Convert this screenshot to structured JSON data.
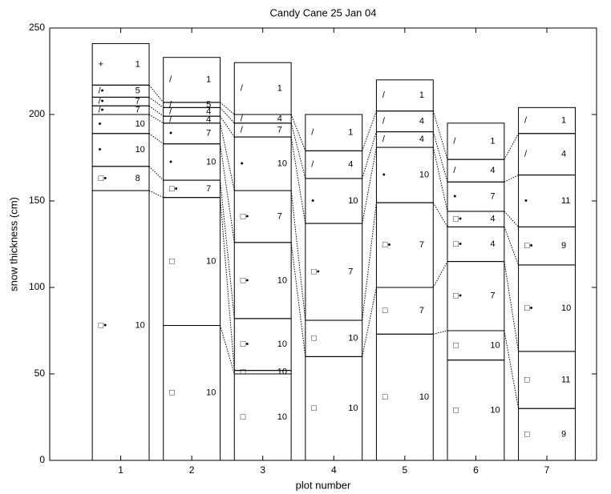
{
  "chart_data": {
    "type": "stratigraphy",
    "title": "Candy Cane 25 Jan 04",
    "xlabel": "plot number",
    "ylabel": "snow thickness (cm)",
    "xlim": [
      0,
      7.7
    ],
    "xticks": [
      1,
      2,
      3,
      4,
      5,
      6,
      7
    ],
    "ylim": [
      0,
      250
    ],
    "yticks": [
      0,
      50,
      100,
      150,
      200,
      250
    ],
    "bar_width": 0.8,
    "color": "#000000",
    "plots": [
      {
        "tops": [
          156,
          170,
          189,
          200,
          205,
          210,
          217,
          241
        ],
        "symbols": [
          "□•",
          "□•",
          "•",
          "•",
          "/•",
          "/•",
          "/•",
          "+"
        ],
        "hardness": [
          10,
          8,
          10,
          10,
          7,
          7,
          5,
          1
        ]
      },
      {
        "tops": [
          78,
          152,
          162,
          183,
          195,
          199,
          204,
          207,
          233
        ],
        "symbols": [
          "□",
          "□",
          "□•",
          "•",
          "•",
          "/",
          "/",
          "/",
          "/"
        ],
        "hardness": [
          10,
          10,
          7,
          10,
          7,
          4,
          4,
          5,
          1
        ]
      },
      {
        "tops": [
          50,
          52,
          82,
          126,
          156,
          187,
          195,
          200,
          230
        ],
        "symbols": [
          "□",
          "□",
          "□•",
          "□•",
          "□•",
          "•",
          "/",
          "/",
          "/"
        ],
        "hardness": [
          10,
          10,
          10,
          10,
          7,
          10,
          7,
          4,
          1
        ]
      },
      {
        "tops": [
          60,
          81,
          137,
          163,
          179,
          200
        ],
        "symbols": [
          "□",
          "□",
          "□•",
          "•",
          "/",
          "/"
        ],
        "hardness": [
          10,
          10,
          7,
          10,
          4,
          1
        ]
      },
      {
        "tops": [
          73,
          100,
          149,
          181,
          190,
          202,
          220
        ],
        "symbols": [
          "□",
          "□",
          "□•",
          "•",
          "/",
          "/",
          "/"
        ],
        "hardness": [
          10,
          7,
          7,
          10,
          4,
          4,
          1
        ]
      },
      {
        "tops": [
          58,
          75,
          115,
          135,
          144,
          161,
          174,
          195
        ],
        "symbols": [
          "□",
          "□",
          "□•",
          "□•",
          "□•",
          "•",
          "/",
          "/"
        ],
        "hardness": [
          10,
          10,
          7,
          4,
          4,
          7,
          4,
          1
        ]
      },
      {
        "tops": [
          30,
          63,
          113,
          135,
          165,
          189,
          204
        ],
        "symbols": [
          "□",
          "□",
          "□•",
          "□•",
          "•",
          "/",
          "/"
        ],
        "hardness": [
          9,
          11,
          10,
          9,
          11,
          4,
          1
        ]
      }
    ]
  }
}
